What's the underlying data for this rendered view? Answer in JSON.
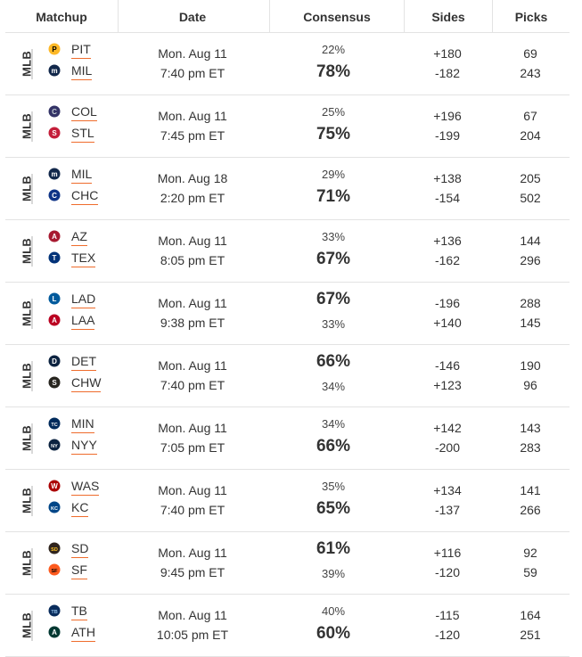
{
  "header": {
    "matchup": "Matchup",
    "date": "Date",
    "consensus": "Consensus",
    "sides": "Sides",
    "picks": "Picks"
  },
  "league_label": "MLB",
  "accent_color": "#ef6c2c",
  "rows": [
    {
      "away": {
        "abbr": "PIT",
        "icon": "pirates-logo-icon",
        "color": "#fdb827",
        "fg": "#000000",
        "glyph": "P"
      },
      "home": {
        "abbr": "MIL",
        "icon": "brewers-logo-icon",
        "color": "#12284b",
        "fg": "#ffffff",
        "glyph": "m"
      },
      "date": "Mon. Aug 11",
      "time": "7:40 pm ET",
      "consensus_top": "22%",
      "consensus_bottom": "78%",
      "favored": "bottom",
      "side_top": "+180",
      "side_bottom": "-182",
      "picks_top": "69",
      "picks_bottom": "243"
    },
    {
      "away": {
        "abbr": "COL",
        "icon": "rockies-logo-icon",
        "color": "#333366",
        "fg": "#c4ced4",
        "glyph": "C"
      },
      "home": {
        "abbr": "STL",
        "icon": "cardinals-logo-icon",
        "color": "#c41e3a",
        "fg": "#ffffff",
        "glyph": "S"
      },
      "date": "Mon. Aug 11",
      "time": "7:45 pm ET",
      "consensus_top": "25%",
      "consensus_bottom": "75%",
      "favored": "bottom",
      "side_top": "+196",
      "side_bottom": "-199",
      "picks_top": "67",
      "picks_bottom": "204"
    },
    {
      "away": {
        "abbr": "MIL",
        "icon": "brewers-logo-icon",
        "color": "#12284b",
        "fg": "#ffffff",
        "glyph": "m"
      },
      "home": {
        "abbr": "CHC",
        "icon": "cubs-logo-icon",
        "color": "#0e3386",
        "fg": "#ffffff",
        "glyph": "C"
      },
      "date": "Mon. Aug 18",
      "time": "2:20 pm ET",
      "consensus_top": "29%",
      "consensus_bottom": "71%",
      "favored": "bottom",
      "side_top": "+138",
      "side_bottom": "-154",
      "picks_top": "205",
      "picks_bottom": "502"
    },
    {
      "away": {
        "abbr": "AZ",
        "icon": "diamondbacks-logo-icon",
        "color": "#a71930",
        "fg": "#ffffff",
        "glyph": "A"
      },
      "home": {
        "abbr": "TEX",
        "icon": "rangers-logo-icon",
        "color": "#003278",
        "fg": "#ffffff",
        "glyph": "T"
      },
      "date": "Mon. Aug 11",
      "time": "8:05 pm ET",
      "consensus_top": "33%",
      "consensus_bottom": "67%",
      "favored": "bottom",
      "side_top": "+136",
      "side_bottom": "-162",
      "picks_top": "144",
      "picks_bottom": "296"
    },
    {
      "away": {
        "abbr": "LAD",
        "icon": "dodgers-logo-icon",
        "color": "#005a9c",
        "fg": "#ffffff",
        "glyph": "L"
      },
      "home": {
        "abbr": "LAA",
        "icon": "angels-logo-icon",
        "color": "#ba0021",
        "fg": "#ffffff",
        "glyph": "A"
      },
      "date": "Mon. Aug 11",
      "time": "9:38 pm ET",
      "consensus_top": "67%",
      "consensus_bottom": "33%",
      "favored": "top",
      "side_top": "-196",
      "side_bottom": "+140",
      "picks_top": "288",
      "picks_bottom": "145"
    },
    {
      "away": {
        "abbr": "DET",
        "icon": "tigers-logo-icon",
        "color": "#0c2340",
        "fg": "#ffffff",
        "glyph": "D"
      },
      "home": {
        "abbr": "CHW",
        "icon": "white-sox-logo-icon",
        "color": "#27251f",
        "fg": "#ffffff",
        "glyph": "S"
      },
      "date": "Mon. Aug 11",
      "time": "7:40 pm ET",
      "consensus_top": "66%",
      "consensus_bottom": "34%",
      "favored": "top",
      "side_top": "-146",
      "side_bottom": "+123",
      "picks_top": "190",
      "picks_bottom": "96"
    },
    {
      "away": {
        "abbr": "MIN",
        "icon": "twins-logo-icon",
        "color": "#002b5c",
        "fg": "#ffffff",
        "glyph": "TC"
      },
      "home": {
        "abbr": "NYY",
        "icon": "yankees-logo-icon",
        "color": "#0c2340",
        "fg": "#ffffff",
        "glyph": "NY"
      },
      "date": "Mon. Aug 11",
      "time": "7:05 pm ET",
      "consensus_top": "34%",
      "consensus_bottom": "66%",
      "favored": "bottom",
      "side_top": "+142",
      "side_bottom": "-200",
      "picks_top": "143",
      "picks_bottom": "283"
    },
    {
      "away": {
        "abbr": "WAS",
        "icon": "nationals-logo-icon",
        "color": "#ab0003",
        "fg": "#ffffff",
        "glyph": "W"
      },
      "home": {
        "abbr": "KC",
        "icon": "royals-logo-icon",
        "color": "#004687",
        "fg": "#ffffff",
        "glyph": "KC"
      },
      "date": "Mon. Aug 11",
      "time": "7:40 pm ET",
      "consensus_top": "35%",
      "consensus_bottom": "65%",
      "favored": "bottom",
      "side_top": "+134",
      "side_bottom": "-137",
      "picks_top": "141",
      "picks_bottom": "266"
    },
    {
      "away": {
        "abbr": "SD",
        "icon": "padres-logo-icon",
        "color": "#2f241d",
        "fg": "#ffc425",
        "glyph": "SD"
      },
      "home": {
        "abbr": "SF",
        "icon": "giants-logo-icon",
        "color": "#fd5a1e",
        "fg": "#000000",
        "glyph": "SF"
      },
      "date": "Mon. Aug 11",
      "time": "9:45 pm ET",
      "consensus_top": "61%",
      "consensus_bottom": "39%",
      "favored": "top",
      "side_top": "+116",
      "side_bottom": "-120",
      "picks_top": "92",
      "picks_bottom": "59"
    },
    {
      "away": {
        "abbr": "TB",
        "icon": "rays-logo-icon",
        "color": "#092c5c",
        "fg": "#8fbce6",
        "glyph": "TB"
      },
      "home": {
        "abbr": "ATH",
        "icon": "athletics-logo-icon",
        "color": "#003831",
        "fg": "#ffffff",
        "glyph": "A"
      },
      "date": "Mon. Aug 11",
      "time": "10:05 pm ET",
      "consensus_top": "40%",
      "consensus_bottom": "60%",
      "favored": "bottom",
      "side_top": "-115",
      "side_bottom": "-120",
      "picks_top": "164",
      "picks_bottom": "251"
    }
  ]
}
